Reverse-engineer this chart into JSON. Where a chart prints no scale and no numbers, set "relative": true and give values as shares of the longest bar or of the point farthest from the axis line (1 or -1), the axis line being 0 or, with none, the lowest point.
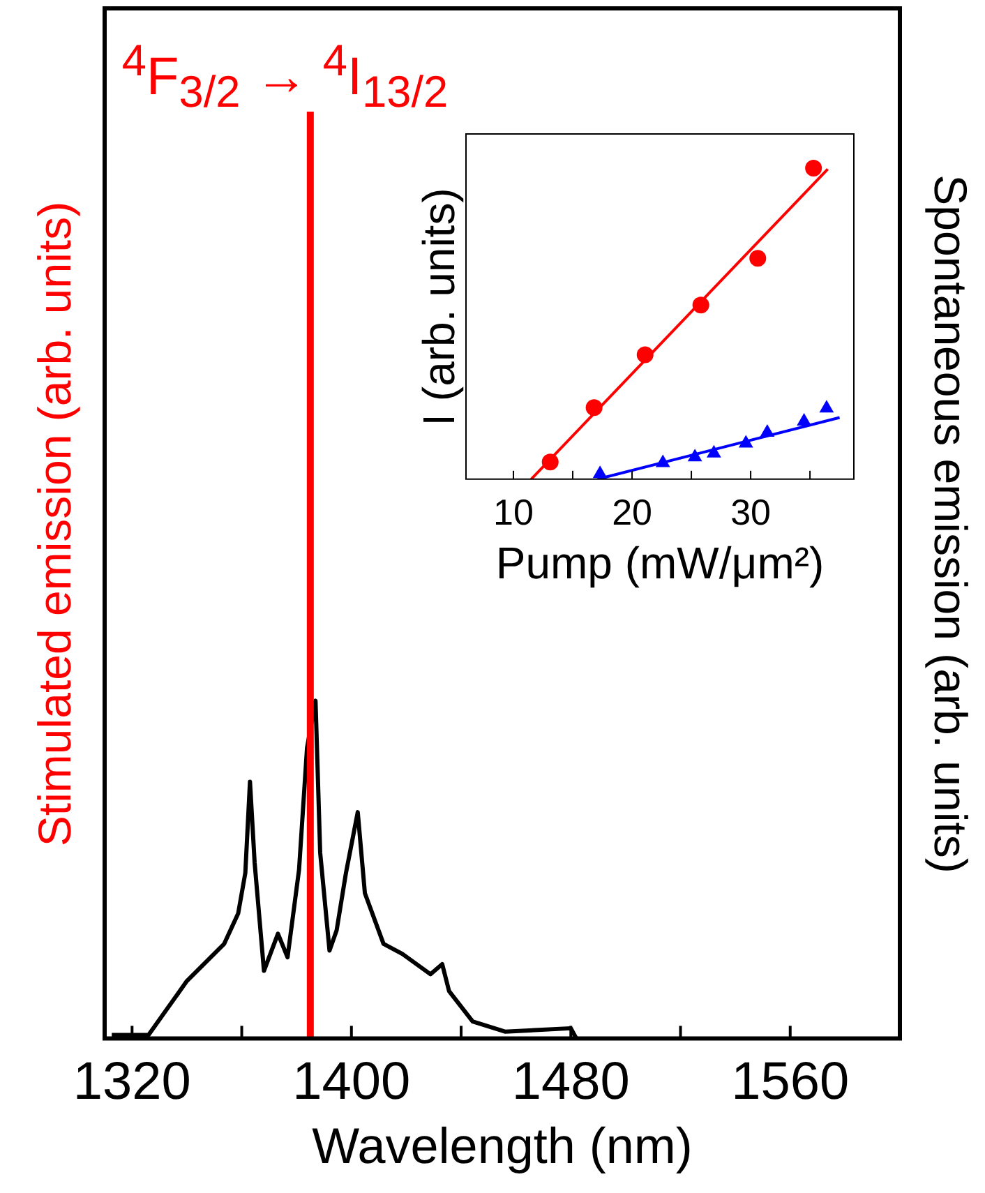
{
  "chart_data": [
    {
      "type": "line",
      "xlabel": "Wavelength (nm)",
      "ylabel": "Stimulated emission (arb. units)",
      "y2label": "Spontaneous emission (arb. units)",
      "relative": true,
      "xlim": [
        1310,
        1600
      ],
      "xticks": [
        1320,
        {
          "value": 1360,
          "label": null
        },
        1400,
        {
          "value": 1440,
          "label": null
        },
        1480,
        {
          "value": 1520,
          "label": null
        },
        1560
      ],
      "series": [
        {
          "color": "#000000",
          "x": [
            1312.6,
            1326,
            1340,
            1353.6,
            1358.7,
            1361.3,
            1363,
            1364.7,
            1368.1,
            1373.2,
            1376.7,
            1380.9,
            1383.8,
            1386.9,
            1388.6,
            1392,
            1394.6,
            1398,
            1402.3,
            1404.9,
            1411.7,
            1418.6,
            1428.8,
            1433.1,
            1435.6,
            1444.2,
            1456,
            1480,
            1482
          ],
          "values": [
            0.01,
            0.01,
            0.17,
            0.28,
            0.37,
            0.49,
            0.76,
            0.52,
            0.2,
            0.31,
            0.24,
            0.5,
            0.86,
            1,
            0.55,
            0.26,
            0.32,
            0.49,
            0.67,
            0.43,
            0.28,
            0.25,
            0.19,
            0.22,
            0.14,
            0.05,
            0.02,
            0.03,
            0
          ]
        }
      ],
      "ref_lines": [
        {
          "axis": "x",
          "value": 1385,
          "label": "$^{4}$F$_{3/2}$ → $^{4}$I$_{13/2}$",
          "color": "#ff0000"
        }
      ]
    },
    {
      "type": "scatter",
      "xlabel": "Pump (mW/μm²)",
      "ylabel": "I (arb. units)",
      "relative": true,
      "xlim": [
        6,
        38.7
      ],
      "xticks": [
        10,
        {
          "value": 15,
          "label": null
        },
        20,
        {
          "value": 25,
          "label": null
        },
        30,
        {
          "value": 35,
          "label": null
        }
      ],
      "series": [
        {
          "color": "#ff0000",
          "marker": "circle",
          "x": [
            13.1,
            16.8,
            21.1,
            25.8,
            30.6,
            35.3
          ],
          "values": [
            0.055,
            0.23,
            0.4,
            0.56,
            0.71,
            1
          ]
        },
        {
          "color": "#0000ff",
          "marker": "triangle",
          "x": [
            17.3,
            22.6,
            25.3,
            26.9,
            29.6,
            31.4,
            34.5,
            36.4
          ],
          "values": [
            0.017,
            0.052,
            0.071,
            0.083,
            0.115,
            0.15,
            0.186,
            0.228
          ]
        },
        {
          "type": "line",
          "color": "#ff0000",
          "marker": "none",
          "x": [
            11.5,
            36.5
          ],
          "values": [
            0,
            0.997
          ]
        },
        {
          "type": "line",
          "color": "#0000ff",
          "marker": "none",
          "x": [
            17.1,
            37.5
          ],
          "values": [
            0,
            0.198
          ]
        }
      ]
    }
  ]
}
